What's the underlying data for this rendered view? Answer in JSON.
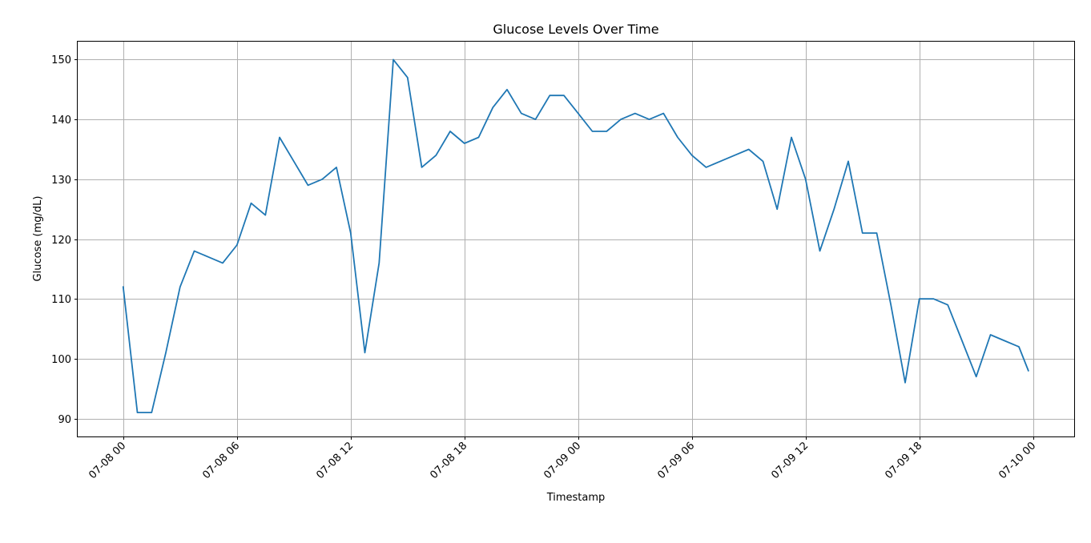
{
  "chart_data": {
    "type": "line",
    "title": "Glucose Levels Over Time",
    "xlabel": "Timestamp",
    "ylabel": "Glucose (mg/dL)",
    "grid": true,
    "line_color": "#1f77b4",
    "x_ticks": [
      "07-08 00",
      "07-08 06",
      "07-08 12",
      "07-08 18",
      "07-09 00",
      "07-09 06",
      "07-09 12",
      "07-09 18",
      "07-10 00"
    ],
    "y_ticks": [
      90,
      100,
      110,
      120,
      130,
      140,
      150
    ],
    "ylim": [
      87,
      153
    ],
    "xlim": [
      "2024-07-07T21:36",
      "2024-07-10T02:10"
    ],
    "series": [
      {
        "x": [
          "2024-07-08T00:00",
          "2024-07-08T00:45",
          "2024-07-08T01:30",
          "2024-07-08T02:15",
          "2024-07-08T03:00",
          "2024-07-08T03:45",
          "2024-07-08T04:30",
          "2024-07-08T05:15",
          "2024-07-08T06:00",
          "2024-07-08T06:45",
          "2024-07-08T07:30",
          "2024-07-08T08:15",
          "2024-07-08T09:00",
          "2024-07-08T09:45",
          "2024-07-08T10:30",
          "2024-07-08T11:15",
          "2024-07-08T12:00",
          "2024-07-08T12:45",
          "2024-07-08T13:30",
          "2024-07-08T14:15",
          "2024-07-08T15:00",
          "2024-07-08T15:45",
          "2024-07-08T16:30",
          "2024-07-08T17:15",
          "2024-07-08T18:00",
          "2024-07-08T18:45",
          "2024-07-08T19:30",
          "2024-07-08T20:15",
          "2024-07-08T21:00",
          "2024-07-08T21:45",
          "2024-07-08T22:30",
          "2024-07-08T23:15",
          "2024-07-09T00:00",
          "2024-07-09T00:45",
          "2024-07-09T01:30",
          "2024-07-09T02:15",
          "2024-07-09T03:00",
          "2024-07-09T03:45",
          "2024-07-09T04:30",
          "2024-07-09T05:15",
          "2024-07-09T06:00",
          "2024-07-09T06:45",
          "2024-07-09T07:30",
          "2024-07-09T08:15",
          "2024-07-09T09:00",
          "2024-07-09T09:45",
          "2024-07-09T10:30",
          "2024-07-09T11:15",
          "2024-07-09T12:00",
          "2024-07-09T12:45",
          "2024-07-09T13:30",
          "2024-07-09T14:15",
          "2024-07-09T15:00",
          "2024-07-09T15:45",
          "2024-07-09T16:30",
          "2024-07-09T17:15",
          "2024-07-09T18:00",
          "2024-07-09T18:45",
          "2024-07-09T19:30",
          "2024-07-09T20:15",
          "2024-07-09T21:00",
          "2024-07-09T21:45",
          "2024-07-09T22:30",
          "2024-07-09T23:15",
          "2024-07-09T23:45"
        ],
        "y": [
          112,
          91,
          91,
          101,
          112,
          118,
          117,
          116,
          119,
          126,
          124,
          137,
          133,
          129,
          130,
          132,
          121,
          101,
          116,
          150,
          147,
          132,
          134,
          138,
          136,
          137,
          142,
          145,
          141,
          140,
          144,
          144,
          141,
          138,
          138,
          140,
          141,
          140,
          141,
          137,
          134,
          132,
          133,
          134,
          135,
          133,
          125,
          137,
          130,
          118,
          125,
          133,
          121,
          121,
          109,
          96,
          110,
          110,
          109,
          103,
          97,
          104,
          103,
          102,
          98
        ]
      }
    ]
  }
}
